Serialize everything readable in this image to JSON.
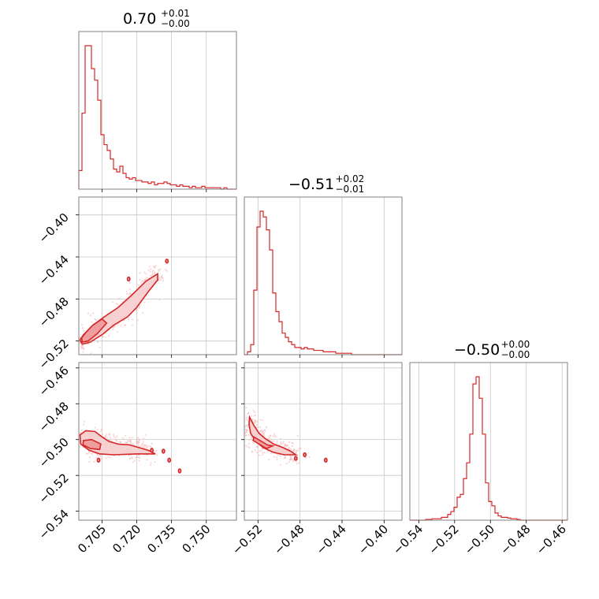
{
  "chart_data": {
    "type": "corner",
    "color": "#d62728",
    "parameters": [
      {
        "title": {
          "value": "0.70",
          "plus": "+0.01",
          "minus": "−0.00"
        },
        "range": [
          0.695,
          0.763
        ],
        "ticks": [
          0.705,
          0.72,
          0.735,
          0.75
        ],
        "tick_labels": [
          "0.705",
          "0.720",
          "0.735",
          "0.750"
        ]
      },
      {
        "title": {
          "value": "−0.51",
          "plus": "+0.02",
          "minus": "−0.01"
        },
        "range": [
          -0.533,
          -0.383
        ],
        "ticks": [
          -0.52,
          -0.48,
          -0.44,
          -0.4
        ],
        "tick_labels": [
          "−0.52",
          "−0.48",
          "−0.44",
          "−0.40"
        ]
      },
      {
        "title": {
          "value": "−0.50",
          "plus": "+0.00",
          "minus": "−0.00"
        },
        "range": [
          -0.545,
          -0.457
        ],
        "ticks": [
          -0.54,
          -0.52,
          -0.5,
          -0.48,
          -0.46
        ],
        "tick_labels": [
          "−0.54",
          "−0.52",
          "−0.50",
          "−0.48",
          "−0.46"
        ]
      }
    ],
    "histograms": [
      {
        "param": 0,
        "bin_edges_start": 0.695,
        "bin_width": 0.00136,
        "counts": [
          0.13,
          0.53,
          1.0,
          1.0,
          0.84,
          0.76,
          0.62,
          0.38,
          0.31,
          0.27,
          0.21,
          0.14,
          0.12,
          0.16,
          0.11,
          0.08,
          0.07,
          0.08,
          0.06,
          0.06,
          0.05,
          0.05,
          0.04,
          0.05,
          0.03,
          0.04,
          0.04,
          0.05,
          0.04,
          0.03,
          0.03,
          0.02,
          0.03,
          0.02,
          0.02,
          0.01,
          0.02,
          0.01,
          0.01,
          0.02,
          0.01,
          0.01,
          0.01,
          0.01,
          0.01,
          0.0,
          0.01,
          0.0,
          0.0,
          0.0
        ]
      },
      {
        "param": 1,
        "bin_edges_start": -0.533,
        "bin_width": 0.003,
        "counts": [
          0.0,
          0.02,
          0.07,
          0.45,
          0.89,
          1.0,
          0.96,
          0.87,
          0.73,
          0.43,
          0.3,
          0.23,
          0.15,
          0.12,
          0.09,
          0.07,
          0.05,
          0.05,
          0.04,
          0.05,
          0.04,
          0.04,
          0.03,
          0.03,
          0.03,
          0.02,
          0.02,
          0.02,
          0.02,
          0.01,
          0.01,
          0.01,
          0.01,
          0.01,
          0.0,
          0.0,
          0.0,
          0.0,
          0.0,
          0.0,
          0.0,
          0.0,
          0.0,
          0.0,
          0.0,
          0.0,
          0.0,
          0.0,
          0.0,
          0.0
        ]
      },
      {
        "param": 2,
        "bin_edges_start": -0.545,
        "bin_width": 0.00176,
        "counts": [
          0.0,
          0.0,
          0.0,
          0.0,
          0.0,
          0.005,
          0.005,
          0.01,
          0.01,
          0.01,
          0.02,
          0.02,
          0.04,
          0.06,
          0.09,
          0.16,
          0.18,
          0.29,
          0.4,
          0.6,
          0.95,
          1.0,
          0.85,
          0.6,
          0.26,
          0.13,
          0.1,
          0.05,
          0.03,
          0.02,
          0.02,
          0.015,
          0.01,
          0.01,
          0.005,
          0.0,
          0.0,
          0.0,
          0.0,
          0.0,
          0.0,
          0.0,
          0.0,
          0.0,
          0.0,
          0.0,
          0.0,
          0.0,
          0.0,
          0.0
        ]
      }
    ],
    "scatter_panels": [
      {
        "x_param": 0,
        "y_param": 1,
        "outer_contour": [
          [
            0.6965,
            -0.523
          ],
          [
            0.7,
            -0.521
          ],
          [
            0.705,
            -0.514
          ],
          [
            0.71,
            -0.505
          ],
          [
            0.716,
            -0.497
          ],
          [
            0.72,
            -0.488
          ],
          [
            0.725,
            -0.473
          ],
          [
            0.729,
            -0.462
          ],
          [
            0.729,
            -0.456
          ],
          [
            0.724,
            -0.463
          ],
          [
            0.718,
            -0.476
          ],
          [
            0.712,
            -0.488
          ],
          [
            0.706,
            -0.497
          ],
          [
            0.701,
            -0.505
          ],
          [
            0.697,
            -0.514
          ],
          [
            0.6955,
            -0.519
          ]
        ],
        "inner_contour": [
          [
            0.6965,
            -0.521
          ],
          [
            0.699,
            -0.52
          ],
          [
            0.703,
            -0.513
          ],
          [
            0.707,
            -0.503
          ],
          [
            0.705,
            -0.499
          ],
          [
            0.701,
            -0.505
          ],
          [
            0.698,
            -0.512
          ],
          [
            0.6962,
            -0.517
          ]
        ],
        "islands": [
          [
            0.7165,
            -0.461
          ],
          [
            0.733,
            -0.444
          ]
        ]
      },
      {
        "x_param": 0,
        "y_param": 2,
        "outer_contour": [
          [
            0.6955,
            -0.4975
          ],
          [
            0.698,
            -0.495
          ],
          [
            0.702,
            -0.4955
          ],
          [
            0.705,
            -0.4985
          ],
          [
            0.708,
            -0.501
          ],
          [
            0.712,
            -0.5025
          ],
          [
            0.717,
            -0.503
          ],
          [
            0.725,
            -0.506
          ],
          [
            0.728,
            -0.508
          ],
          [
            0.72,
            -0.508
          ],
          [
            0.71,
            -0.5085
          ],
          [
            0.704,
            -0.508
          ],
          [
            0.6995,
            -0.506
          ],
          [
            0.6958,
            -0.5025
          ]
        ],
        "inner_contour": [
          [
            0.697,
            -0.5005
          ],
          [
            0.7005,
            -0.5
          ],
          [
            0.7045,
            -0.5025
          ],
          [
            0.704,
            -0.5055
          ],
          [
            0.7,
            -0.505
          ],
          [
            0.6968,
            -0.503
          ]
        ],
        "islands": [
          [
            0.7035,
            -0.5115
          ],
          [
            0.7265,
            -0.506
          ],
          [
            0.734,
            -0.5115
          ],
          [
            0.7385,
            -0.5175
          ],
          [
            0.7315,
            -0.5065
          ]
        ]
      },
      {
        "x_param": 1,
        "y_param": 2,
        "outer_contour": [
          [
            -0.528,
            -0.4875
          ],
          [
            -0.524,
            -0.492
          ],
          [
            -0.519,
            -0.4965
          ],
          [
            -0.513,
            -0.4995
          ],
          [
            -0.505,
            -0.5025
          ],
          [
            -0.496,
            -0.5045
          ],
          [
            -0.489,
            -0.5065
          ],
          [
            -0.484,
            -0.5085
          ],
          [
            -0.495,
            -0.5085
          ],
          [
            -0.506,
            -0.507
          ],
          [
            -0.515,
            -0.5045
          ],
          [
            -0.522,
            -0.501
          ],
          [
            -0.527,
            -0.4965
          ],
          [
            -0.5285,
            -0.4915
          ]
        ],
        "inner_contour": [
          [
            -0.524,
            -0.4985
          ],
          [
            -0.518,
            -0.5005
          ],
          [
            -0.511,
            -0.503
          ],
          [
            -0.506,
            -0.5035
          ],
          [
            -0.512,
            -0.505
          ],
          [
            -0.519,
            -0.5025
          ],
          [
            -0.5245,
            -0.5005
          ]
        ],
        "islands": [
          [
            -0.4755,
            -0.5085
          ],
          [
            -0.4555,
            -0.5115
          ],
          [
            -0.484,
            -0.5105
          ]
        ]
      }
    ]
  }
}
